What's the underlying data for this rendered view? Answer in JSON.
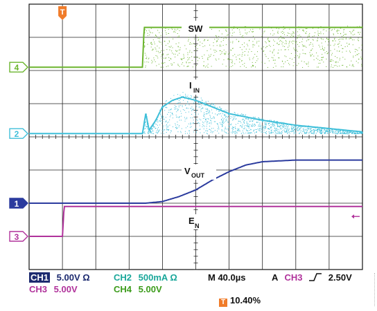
{
  "chart_data": {
    "type": "line",
    "title": "",
    "time_per_div": "40.0µs",
    "divisions": {
      "x": 10,
      "y": 8
    },
    "grid": true,
    "ylim": [
      -4,
      4
    ],
    "xlim": [
      0,
      10
    ],
    "series": [
      {
        "name": "SW",
        "channel": "4",
        "color": "#6ab42c",
        "marker_level": 2.1,
        "x": [
          0,
          3.4,
          3.45,
          10
        ],
        "y": [
          2.1,
          2.1,
          3.3,
          3.3
        ],
        "label": "SW",
        "label_pos": [
          5.0,
          3.4
        ]
      },
      {
        "name": "I_IN",
        "channel": "2",
        "color": "#3fbfd9",
        "marker_level": 0.1,
        "x": [
          0,
          3.4,
          3.5,
          3.6,
          3.8,
          4.0,
          4.3,
          4.6,
          5.0,
          5.5,
          6.0,
          7.0,
          8.0,
          9.0,
          10.0
        ],
        "y": [
          0.1,
          0.1,
          0.7,
          0.2,
          0.5,
          0.9,
          1.1,
          1.2,
          1.1,
          0.9,
          0.7,
          0.5,
          0.35,
          0.25,
          0.15
        ],
        "label": "IIN",
        "label_pos": [
          5.0,
          1.35
        ]
      },
      {
        "name": "V_OUT",
        "channel": "1",
        "color": "#2b3b9e",
        "marker_level": -2.0,
        "x": [
          0,
          3.5,
          4.0,
          4.5,
          5.0,
          5.5,
          6.0,
          6.5,
          7.0,
          8.0,
          9.0,
          10.0
        ],
        "y": [
          -2.0,
          -2.0,
          -1.95,
          -1.8,
          -1.6,
          -1.3,
          -1.05,
          -0.85,
          -0.75,
          -0.7,
          -0.7,
          -0.7
        ],
        "label": "VOUT",
        "label_pos": [
          5.0,
          -1.0
        ]
      },
      {
        "name": "E_N",
        "channel": "3",
        "color": "#b0329b",
        "marker_level": -3.0,
        "x": [
          0,
          1.0,
          1.05,
          10
        ],
        "y": [
          -3.0,
          -3.0,
          -2.1,
          -2.1
        ],
        "label": "EN",
        "label_pos": [
          5.0,
          -2.5
        ]
      }
    ],
    "trigger_marker": {
      "label": "T",
      "x": 1.0
    },
    "trigger_arrow_level": -2.4
  },
  "readout": {
    "ch1": {
      "badge": "CH1",
      "value": "5.00V Ω"
    },
    "ch2": {
      "label": "CH2",
      "value": "500mA Ω"
    },
    "ch3": {
      "label": "CH3",
      "value": "5.00V"
    },
    "ch4": {
      "label": "CH4",
      "value": "5.00V"
    },
    "timebase": "M 40.0µs",
    "trigger": {
      "mode": "A",
      "channel": "CH3",
      "level": "2.50V"
    },
    "trigger_position": "10.40%"
  },
  "labels": {
    "sw": "SW",
    "iin_main": "I",
    "iin_sub": "IN",
    "vout_main": "V",
    "vout_sub": "OUT",
    "en_main": "E",
    "en_sub": "N",
    "ch1_marker": "1",
    "ch2_marker": "2",
    "ch3_marker": "3",
    "ch4_marker": "4",
    "trig_marker": "T"
  },
  "colors": {
    "ch1": "#2b3b9e",
    "ch2": "#3fbfd9",
    "ch3": "#b0329b",
    "ch4": "#6ab42c",
    "trigger": "#f07c2a",
    "readout_dark": "#1c2a6f",
    "ch2_text": "#1aa79a",
    "ch4_text": "#3b9b1a"
  }
}
